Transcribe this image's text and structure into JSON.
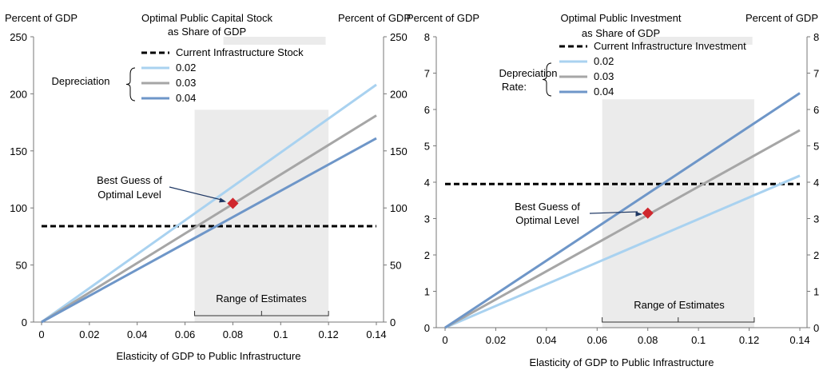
{
  "chart_data": [
    {
      "type": "line",
      "title": "Optimal Public Capital Stock as Share of GDP",
      "title_lines": [
        "Optimal Public Capital Stock",
        "as Share of GDP"
      ],
      "ylabel_left": "Percent of GDP",
      "ylabel_right": "Percent of GDP",
      "xlabel": "Elasticity of GDP to Public Infrastructure",
      "xlim": [
        0,
        0.14
      ],
      "ylim": [
        0,
        250
      ],
      "x_ticks": [
        "0",
        "0.02",
        "0.04",
        "0.06",
        "0.08",
        "0.1",
        "0.12",
        "0.14"
      ],
      "y_ticks": [
        "0",
        "50",
        "100",
        "150",
        "200",
        "250"
      ],
      "legend_group_label": "Depreciation",
      "legend_position": "top-center",
      "reference_line": {
        "name": "Current Infrastructure Stock",
        "y": 84
      },
      "series": [
        {
          "name": "0.02",
          "color": "#a9d2f0",
          "x": [
            0,
            0.14
          ],
          "y": [
            0,
            208
          ]
        },
        {
          "name": "0.03",
          "color": "#a6a6a6",
          "x": [
            0,
            0.14
          ],
          "y": [
            0,
            181
          ]
        },
        {
          "name": "0.04",
          "color": "#6e96c8",
          "x": [
            0,
            0.14
          ],
          "y": [
            0,
            161
          ]
        }
      ],
      "shaded_range": {
        "x": [
          0.064,
          0.12
        ],
        "y_top": 186,
        "label": "Range of Estimates"
      },
      "marker": {
        "label_lines": [
          "Best Guess of",
          "Optimal Level"
        ],
        "x": 0.08,
        "y": 104,
        "color": "#d0282e"
      }
    },
    {
      "type": "line",
      "title": "Optimal Public Investment as Share of GDP",
      "title_lines": [
        "Optimal Public Investment",
        "as Share of GDP"
      ],
      "ylabel_left": "Percent of GDP",
      "ylabel_right": "Percent of GDP",
      "xlabel": "Elasticity of GDP to Public Infrastructure",
      "xlim": [
        0,
        0.14
      ],
      "ylim": [
        0,
        8
      ],
      "x_ticks": [
        "0",
        "0.02",
        "0.04",
        "0.06",
        "0.08",
        "0.1",
        "0.12",
        "0.14"
      ],
      "y_ticks": [
        "0",
        "1",
        "2",
        "3",
        "4",
        "5",
        "6",
        "7",
        "8"
      ],
      "legend_group_label_lines": [
        "Depreciation",
        "Rate:"
      ],
      "legend_position": "top-center",
      "reference_line": {
        "name": "Current Infrastructure Investment",
        "y": 3.95
      },
      "series": [
        {
          "name": "0.02",
          "color": "#a9d2f0",
          "x": [
            0,
            0.14
          ],
          "y": [
            0,
            4.18
          ]
        },
        {
          "name": "0.03",
          "color": "#a6a6a6",
          "x": [
            0,
            0.14
          ],
          "y": [
            0,
            5.43
          ]
        },
        {
          "name": "0.04",
          "color": "#6e96c8",
          "x": [
            0,
            0.14
          ],
          "y": [
            0,
            6.45
          ]
        }
      ],
      "shaded_range": {
        "x": [
          0.062,
          0.122
        ],
        "y_top": 6.28,
        "label": "Range of Estimates"
      },
      "marker": {
        "label_lines": [
          "Best Guess of",
          "Optimal Level"
        ],
        "x": 0.08,
        "y": 3.15,
        "color": "#d0282e"
      }
    }
  ]
}
